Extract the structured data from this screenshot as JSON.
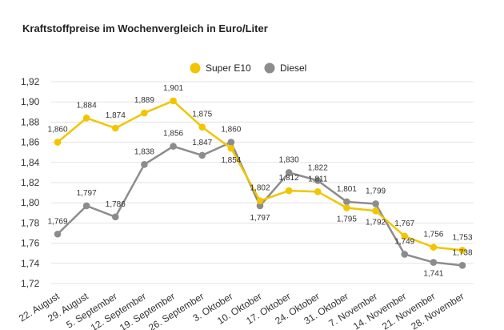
{
  "chart_data": {
    "type": "line",
    "title": "Kraftstoffpreise im Wochenvergleich in Euro/Liter",
    "categories": [
      "22. August",
      "29. August",
      "5. September",
      "12. September",
      "19. September",
      "26. September",
      "3. Oktober",
      "10. Oktober",
      "17. Oktober",
      "24. Oktober",
      "31. Oktober",
      "7. November",
      "14. November",
      "21. November",
      "28. November"
    ],
    "ylim": [
      1.72,
      1.92
    ],
    "yticks": [
      "1,72",
      "1,74",
      "1,76",
      "1,78",
      "1,80",
      "1,82",
      "1,84",
      "1,86",
      "1,88",
      "1,90",
      "1,92"
    ],
    "grid": true,
    "legend_position": "top-right",
    "series": [
      {
        "name": "Super E10",
        "color": "#f2c500",
        "values": [
          1.86,
          1.884,
          1.874,
          1.889,
          1.901,
          1.875,
          1.854,
          1.802,
          1.812,
          1.811,
          1.795,
          1.792,
          1.767,
          1.756,
          1.753
        ],
        "labels": [
          "1,860",
          "1,884",
          "1,874",
          "1,889",
          "1,901",
          "1,875",
          "1,854",
          "1,802",
          "1,812",
          "1,811",
          "1,795",
          "1,792",
          "1,767",
          "1,756",
          "1,753"
        ]
      },
      {
        "name": "Diesel",
        "color": "#8c8c8c",
        "values": [
          1.769,
          1.797,
          1.786,
          1.838,
          1.856,
          1.847,
          1.86,
          1.797,
          1.83,
          1.822,
          1.801,
          1.799,
          1.749,
          1.741,
          1.738
        ],
        "labels": [
          "1,769",
          "1,797",
          "1,786",
          "1,838",
          "1,856",
          "1,847",
          "1,860",
          "1,797",
          "1,830",
          "1,822",
          "1,801",
          "1,799",
          "1,749",
          "1,741",
          "1,738"
        ]
      }
    ]
  }
}
